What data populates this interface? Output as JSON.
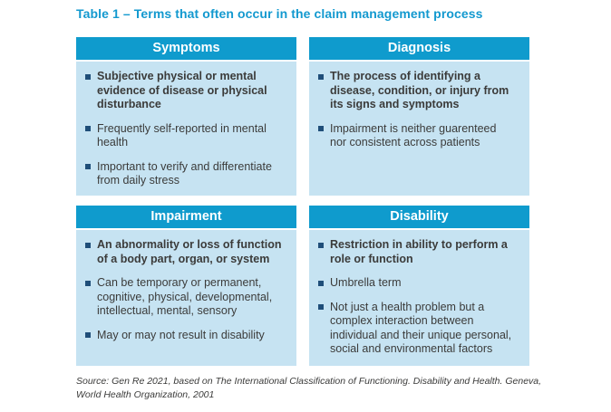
{
  "page": {
    "title": "Table 1 – Terms that often occur in the claim management process",
    "source": "Source: Gen Re 2021, based on The International Classification of Functioning. Disability and Health. Geneva,\nWorld Health Organization, 2001"
  },
  "colors": {
    "accent_cyan": "#0f9bcd",
    "title_cyan": "#1399cf",
    "body_background_blue": "#c6e3f2",
    "bullet_navy": "#1f4e79",
    "text_dark": "#3b3b3a"
  },
  "quadrants": [
    {
      "title": "Symptoms",
      "bullets": [
        {
          "text": "Subjective physical or mental\nevidence of disease or physical\ndisturbance"
        },
        {
          "text": "Frequently self-reported in mental\nhealth"
        },
        {
          "text": "Important to verify and differentiate\nfrom daily stress"
        }
      ]
    },
    {
      "title": "Diagnosis",
      "bullets": [
        {
          "text": "The process of identifying a\ndisease, condition, or injury from\nits signs and symptoms"
        },
        {
          "text": "Impairment is neither guarenteed\nnor consistent across patients"
        }
      ]
    },
    {
      "title": "Impairment",
      "bullets": [
        {
          "text": "An abnormality or loss of function\nof a body part, organ, or system"
        },
        {
          "text": "Can be temporary or permanent,\ncognitive, physical, developmental,\nintellectual, mental, sensory"
        },
        {
          "text": "May or may not result in disability"
        }
      ]
    },
    {
      "title": "Disability",
      "bullets": [
        {
          "text": "Restriction in ability to perform a\nrole or function"
        },
        {
          "text": "Umbrella term"
        },
        {
          "text": "Not just a health problem but a\ncomplex interaction between\nindividual and their unique personal,\nsocial and environmental factors"
        }
      ]
    }
  ]
}
